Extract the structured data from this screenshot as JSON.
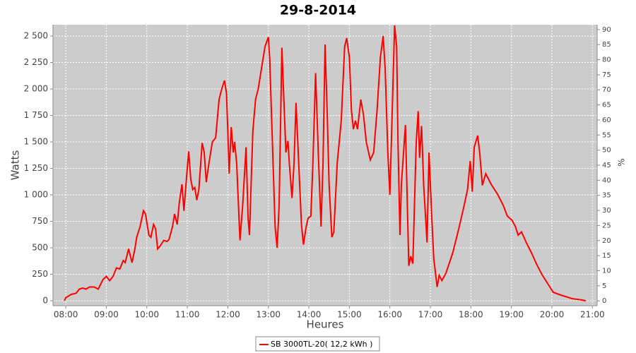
{
  "chart_data": {
    "type": "line",
    "title": "29-8-2014",
    "x_label": "Heures",
    "y_label": "Watts",
    "y2_label": "%",
    "x": [
      "07:58",
      "08:00",
      "08:03",
      "08:08",
      "08:15",
      "08:20",
      "08:25",
      "08:30",
      "08:35",
      "08:42",
      "08:48",
      "08:55",
      "09:00",
      "09:05",
      "09:10",
      "09:15",
      "09:20",
      "09:25",
      "09:28",
      "09:33",
      "09:38",
      "09:42",
      "09:45",
      "09:50",
      "09:55",
      "09:58",
      "10:03",
      "10:06",
      "10:10",
      "10:13",
      "10:16",
      "10:20",
      "10:25",
      "10:30",
      "10:33",
      "10:38",
      "10:41",
      "10:45",
      "10:48",
      "10:52",
      "10:55",
      "10:58",
      "11:02",
      "11:05",
      "11:08",
      "11:11",
      "11:14",
      "11:17",
      "11:22",
      "11:25",
      "11:28",
      "11:32",
      "11:37",
      "11:42",
      "11:47",
      "11:51",
      "11:55",
      "11:58",
      "12:00",
      "12:02",
      "12:05",
      "12:08",
      "12:10",
      "12:13",
      "12:18",
      "12:22",
      "12:27",
      "12:30",
      "12:32",
      "12:37",
      "12:41",
      "12:45",
      "12:50",
      "12:55",
      "13:00",
      "13:02",
      "13:05",
      "13:10",
      "13:13",
      "13:16",
      "13:20",
      "13:23",
      "13:26",
      "13:29",
      "13:31",
      "13:35",
      "13:38",
      "13:41",
      "13:45",
      "13:49",
      "13:52",
      "13:56",
      "13:59",
      "14:03",
      "14:06",
      "14:10",
      "14:14",
      "14:18",
      "14:21",
      "14:24",
      "14:27",
      "14:30",
      "14:34",
      "14:37",
      "14:42",
      "14:48",
      "14:53",
      "14:56",
      "15:00",
      "15:03",
      "15:06",
      "15:09",
      "15:12",
      "15:17",
      "15:21",
      "15:25",
      "15:31",
      "15:36",
      "15:41",
      "15:46",
      "15:50",
      "15:53",
      "15:57",
      "16:00",
      "16:04",
      "16:07",
      "16:10",
      "16:12",
      "16:15",
      "16:17",
      "16:23",
      "16:28",
      "16:31",
      "16:34",
      "16:39",
      "16:42",
      "16:44",
      "16:47",
      "16:50",
      "16:55",
      "16:58",
      "17:02",
      "17:05",
      "17:10",
      "17:13",
      "17:17",
      "17:23",
      "17:33",
      "17:42",
      "17:50",
      "17:55",
      "17:59",
      "18:02",
      "18:05",
      "18:10",
      "18:13",
      "18:17",
      "18:22",
      "18:30",
      "18:40",
      "18:48",
      "18:54",
      "19:01",
      "19:06",
      "19:10",
      "19:15",
      "19:22",
      "19:30",
      "19:37",
      "19:45",
      "19:55",
      "20:02",
      "20:15",
      "20:30",
      "20:42",
      "20:50"
    ],
    "series": [
      {
        "name": "SB 3000TL-20( 12,2 kWh )",
        "color": "#ff0000",
        "values": [
          0,
          30,
          40,
          60,
          70,
          110,
          120,
          110,
          130,
          130,
          110,
          200,
          230,
          190,
          230,
          310,
          300,
          380,
          360,
          490,
          360,
          480,
          600,
          700,
          850,
          820,
          620,
          600,
          720,
          680,
          490,
          520,
          570,
          560,
          580,
          700,
          820,
          720,
          920,
          1100,
          850,
          1100,
          1410,
          1150,
          1050,
          1070,
          950,
          1050,
          1490,
          1400,
          1120,
          1300,
          1500,
          1540,
          1900,
          2000,
          2080,
          1960,
          1600,
          1200,
          1640,
          1400,
          1500,
          1300,
          570,
          900,
          1450,
          780,
          620,
          1600,
          1900,
          2000,
          2200,
          2400,
          2490,
          2280,
          1700,
          700,
          500,
          900,
          2390,
          1900,
          1400,
          1510,
          1300,
          970,
          1300,
          1870,
          1300,
          720,
          530,
          700,
          780,
          800,
          1300,
          2150,
          1400,
          700,
          1300,
          2420,
          1800,
          1100,
          600,
          650,
          1300,
          1700,
          2400,
          2480,
          2300,
          1800,
          1620,
          1700,
          1620,
          1900,
          1750,
          1500,
          1330,
          1400,
          1800,
          2300,
          2500,
          2200,
          1400,
          1000,
          1900,
          2600,
          2400,
          1500,
          620,
          1100,
          1660,
          330,
          420,
          350,
          1500,
          1790,
          1350,
          1650,
          1100,
          550,
          1400,
          800,
          400,
          130,
          240,
          190,
          260,
          450,
          680,
          900,
          1050,
          1320,
          1030,
          1450,
          1560,
          1400,
          1090,
          1200,
          1100,
          1000,
          900,
          800,
          760,
          700,
          620,
          650,
          550,
          450,
          350,
          250,
          150,
          80,
          50,
          20,
          10,
          0
        ]
      }
    ],
    "xlim": [
      "07:41",
      "21:07"
    ],
    "xticks": [
      "08:00",
      "09:00",
      "10:00",
      "11:00",
      "12:00",
      "13:00",
      "14:00",
      "15:00",
      "16:00",
      "17:00",
      "18:00",
      "19:00",
      "20:00",
      "21:00"
    ],
    "ylim": [
      -47,
      2607
    ],
    "yticks": [
      0,
      250,
      500,
      750,
      {
        "value": 1000,
        "label": "1 000"
      },
      {
        "value": 1250,
        "label": "1 250"
      },
      {
        "value": 1500,
        "label": "1 500"
      },
      {
        "value": 1750,
        "label": "1 750"
      },
      {
        "value": 2000,
        "label": "2 000"
      },
      {
        "value": 2250,
        "label": "2 250"
      },
      {
        "value": 2500,
        "label": "2 500"
      }
    ],
    "y2lim": [
      -1.6,
      91.6
    ],
    "y2ticks": [
      0,
      5,
      10,
      15,
      20,
      25,
      30,
      35,
      40,
      45,
      50,
      55,
      60,
      65,
      70,
      75,
      80,
      85,
      90
    ],
    "grid": true,
    "legend": "bottom"
  }
}
